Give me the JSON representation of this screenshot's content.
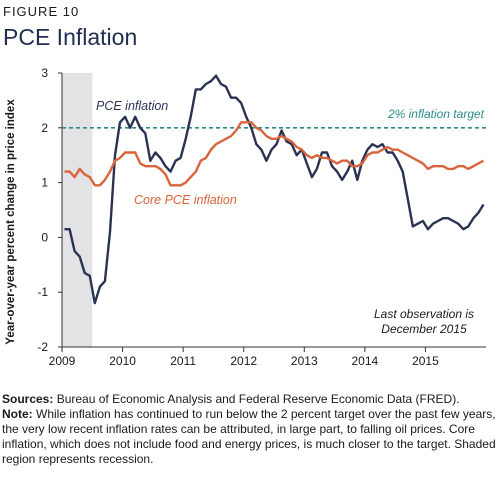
{
  "figure_label": "FIGURE 10",
  "title": "PCE Inflation",
  "sources_label": "Sources:",
  "sources_text": "Bureau of Economic Analysis and Federal Reserve Economic Data (FRED).",
  "note_label": "Note:",
  "note_text": "While inflation has continued to run below the 2 percent target over the past few years, the very low recent inflation rates can be attributed, in large part, to falling oil prices. Core inflation, which does not include food and energy prices, is much closer to the target. Shaded region represents recession.",
  "chart_data": {
    "type": "line",
    "ylabel": "Year-over-year percent change in price index",
    "xlabel": "",
    "ylim": [
      -2,
      3
    ],
    "yticks": [
      -2,
      -1,
      0,
      1,
      2,
      3
    ],
    "xticks": [
      "2009",
      "2010",
      "2011",
      "2012",
      "2013",
      "2014",
      "2015"
    ],
    "xlim": [
      "2009-01",
      "2015-12"
    ],
    "grid": false,
    "recession": {
      "start": "2009-01",
      "end": "2009-06"
    },
    "target": {
      "value": 2,
      "label": "2% inflation target",
      "color": "#2e8b8b"
    },
    "annotation": [
      "Last observation is",
      "December 2015"
    ],
    "series": [
      {
        "name": "PCE inflation",
        "color": "#2b3355",
        "x": [
          "2009-01",
          "2009-02",
          "2009-03",
          "2009-04",
          "2009-05",
          "2009-06",
          "2009-07",
          "2009-08",
          "2009-09",
          "2009-10",
          "2009-11",
          "2009-12",
          "2010-01",
          "2010-02",
          "2010-03",
          "2010-04",
          "2010-05",
          "2010-06",
          "2010-07",
          "2010-08",
          "2010-09",
          "2010-10",
          "2010-11",
          "2010-12",
          "2011-01",
          "2011-02",
          "2011-03",
          "2011-04",
          "2011-05",
          "2011-06",
          "2011-07",
          "2011-08",
          "2011-09",
          "2011-10",
          "2011-11",
          "2011-12",
          "2012-01",
          "2012-02",
          "2012-03",
          "2012-04",
          "2012-05",
          "2012-06",
          "2012-07",
          "2012-08",
          "2012-09",
          "2012-10",
          "2012-11",
          "2012-12",
          "2013-01",
          "2013-02",
          "2013-03",
          "2013-04",
          "2013-05",
          "2013-06",
          "2013-07",
          "2013-08",
          "2013-09",
          "2013-10",
          "2013-11",
          "2013-12",
          "2014-01",
          "2014-02",
          "2014-03",
          "2014-04",
          "2014-05",
          "2014-06",
          "2014-07",
          "2014-08",
          "2014-09",
          "2014-10",
          "2014-11",
          "2014-12",
          "2015-01",
          "2015-02",
          "2015-03",
          "2015-04",
          "2015-05",
          "2015-06",
          "2015-07",
          "2015-08",
          "2015-09",
          "2015-10",
          "2015-11",
          "2015-12"
        ],
        "values": [
          0.15,
          0.15,
          -0.25,
          -0.35,
          -0.65,
          -0.7,
          -1.2,
          -0.9,
          -0.8,
          0.1,
          1.5,
          2.1,
          2.2,
          2.0,
          2.2,
          2.0,
          1.9,
          1.4,
          1.55,
          1.45,
          1.3,
          1.2,
          1.4,
          1.45,
          1.8,
          2.2,
          2.7,
          2.7,
          2.8,
          2.85,
          2.95,
          2.8,
          2.75,
          2.55,
          2.55,
          2.45,
          2.2,
          2.0,
          1.7,
          1.6,
          1.4,
          1.6,
          1.7,
          1.95,
          1.75,
          1.7,
          1.5,
          1.6,
          1.35,
          1.1,
          1.25,
          1.55,
          1.55,
          1.3,
          1.2,
          1.05,
          1.2,
          1.4,
          1.05,
          1.4,
          1.6,
          1.7,
          1.65,
          1.7,
          1.55,
          1.55,
          1.4,
          1.2,
          0.7,
          0.2,
          0.25,
          0.3,
          0.15,
          0.25,
          0.3,
          0.35,
          0.35,
          0.3,
          0.25,
          0.15,
          0.2,
          0.35,
          0.45,
          0.6
        ]
      },
      {
        "name": "Core PCE inflation",
        "color": "#d9643a",
        "x": [
          "2009-01",
          "2009-02",
          "2009-03",
          "2009-04",
          "2009-05",
          "2009-06",
          "2009-07",
          "2009-08",
          "2009-09",
          "2009-10",
          "2009-11",
          "2009-12",
          "2010-01",
          "2010-02",
          "2010-03",
          "2010-04",
          "2010-05",
          "2010-06",
          "2010-07",
          "2010-08",
          "2010-09",
          "2010-10",
          "2010-11",
          "2010-12",
          "2011-01",
          "2011-02",
          "2011-03",
          "2011-04",
          "2011-05",
          "2011-06",
          "2011-07",
          "2011-08",
          "2011-09",
          "2011-10",
          "2011-11",
          "2011-12",
          "2012-01",
          "2012-02",
          "2012-03",
          "2012-04",
          "2012-05",
          "2012-06",
          "2012-07",
          "2012-08",
          "2012-09",
          "2012-10",
          "2012-11",
          "2012-12",
          "2013-01",
          "2013-02",
          "2013-03",
          "2013-04",
          "2013-05",
          "2013-06",
          "2013-07",
          "2013-08",
          "2013-09",
          "2013-10",
          "2013-11",
          "2013-12",
          "2014-01",
          "2014-02",
          "2014-03",
          "2014-04",
          "2014-05",
          "2014-06",
          "2014-07",
          "2014-08",
          "2014-09",
          "2014-10",
          "2014-11",
          "2014-12",
          "2015-01",
          "2015-02",
          "2015-03",
          "2015-04",
          "2015-05",
          "2015-06",
          "2015-07",
          "2015-08",
          "2015-09",
          "2015-10",
          "2015-11",
          "2015-12"
        ],
        "values": [
          1.2,
          1.2,
          1.1,
          1.25,
          1.15,
          1.1,
          0.95,
          0.95,
          1.05,
          1.2,
          1.4,
          1.45,
          1.55,
          1.55,
          1.55,
          1.35,
          1.3,
          1.3,
          1.3,
          1.25,
          1.15,
          0.95,
          0.95,
          0.95,
          1.0,
          1.1,
          1.2,
          1.4,
          1.45,
          1.6,
          1.7,
          1.75,
          1.8,
          1.85,
          1.95,
          2.1,
          2.1,
          2.1,
          2.0,
          1.95,
          1.85,
          1.8,
          1.8,
          1.85,
          1.8,
          1.75,
          1.65,
          1.6,
          1.5,
          1.45,
          1.5,
          1.45,
          1.45,
          1.4,
          1.35,
          1.4,
          1.4,
          1.3,
          1.3,
          1.35,
          1.5,
          1.55,
          1.55,
          1.6,
          1.65,
          1.6,
          1.6,
          1.55,
          1.5,
          1.45,
          1.4,
          1.35,
          1.25,
          1.3,
          1.3,
          1.3,
          1.25,
          1.25,
          1.3,
          1.3,
          1.25,
          1.3,
          1.35,
          1.4
        ]
      }
    ]
  }
}
